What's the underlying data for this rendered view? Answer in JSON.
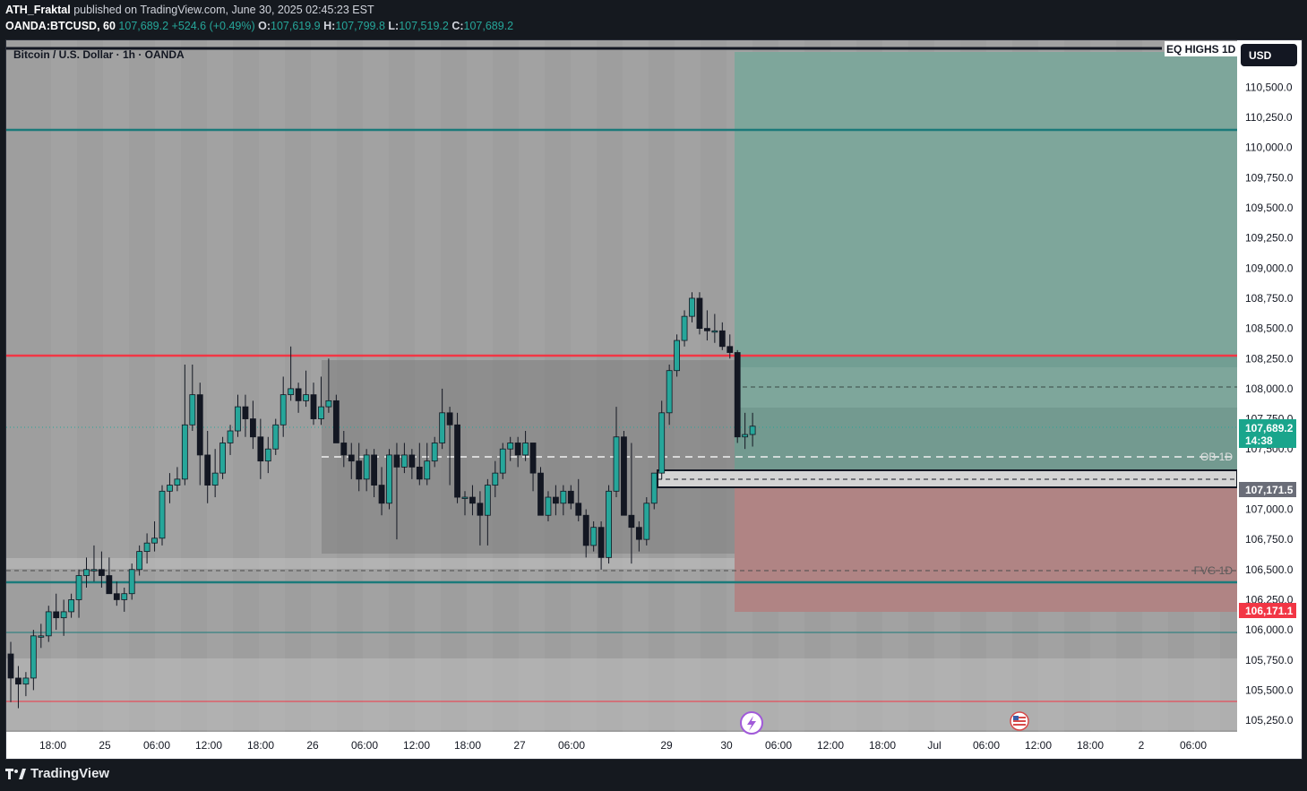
{
  "publish_line": {
    "author": "ATH_Fraktal",
    "text": " published on TradingView.com, June 30, 2025 02:45:23 EST"
  },
  "ohlc_line": {
    "symbol": "OANDA:BTCUSD, 60",
    "last": "107,689.2",
    "change": "+524.6 (+0.49%)",
    "o_label": "O:",
    "o": "107,619.9",
    "h_label": "H:",
    "h": "107,799.8",
    "l_label": "L:",
    "l": "107,519.2",
    "c_label": "C:",
    "c": "107,689.2"
  },
  "chart_title": "Bitcoin / U.S. Dollar · 1h · OANDA",
  "currency_button": "USD",
  "annotations": {
    "eq_highs": "EQ HIGHS 1D",
    "ob": "OB 1D",
    "fvg": "FVG 1D"
  },
  "price_badges": {
    "last": "107,689.2",
    "countdown": "14:38",
    "entry": "107,171.5",
    "stop": "106,171.1"
  },
  "footer_brand": "TradingView",
  "colors": {
    "up": "#26a69a",
    "down": "#131722",
    "profit_zone": "#7ea69b",
    "loss_zone": "#b08484",
    "level_red": "#f23645",
    "level_teal": "#1b7a7a",
    "badge_green": "#1aa58c",
    "badge_red": "#f23645",
    "badge_gray": "#6a6d78"
  },
  "chart_data": {
    "type": "candlestick",
    "symbol": "BTCUSD",
    "interval": "1h",
    "ylim": [
      105100,
      110700
    ],
    "y_ticks": [
      "110,500.0",
      "110,250.0",
      "110,000.0",
      "109,750.0",
      "109,500.0",
      "109,250.0",
      "109,000.0",
      "108,750.0",
      "108,500.0",
      "108,250.0",
      "108,000.0",
      "107,750.0",
      "107,500.0",
      "107,250.0",
      "107,000.0",
      "106,750.0",
      "106,500.0",
      "106,250.0",
      "106,000.0",
      "105,750.0",
      "105,500.0",
      "105,250.0"
    ],
    "x_ticks": [
      "18:00",
      "25",
      "06:00",
      "12:00",
      "18:00",
      "26",
      "06:00",
      "12:00",
      "18:00",
      "27",
      "06:00",
      "29",
      "30",
      "06:00",
      "12:00",
      "18:00",
      "Jul",
      "06:00",
      "12:00",
      "18:00",
      "2",
      "06:00"
    ],
    "levels": [
      {
        "name": "EQ HIGHS 1D",
        "price": 110150
      },
      {
        "name": "red level",
        "price": 108280
      },
      {
        "name": "OB 1D",
        "price": 107450
      },
      {
        "name": "FVG 1D",
        "price": 106500
      },
      {
        "name": "teal level",
        "price": 106400
      },
      {
        "name": "thin teal",
        "price": 105990
      },
      {
        "name": "thin red",
        "price": 105420
      }
    ],
    "position": {
      "entry": 107171.5,
      "target": 110650,
      "stop": 106171.1
    },
    "candles": [
      [
        105800,
        105900,
        105400,
        105600
      ],
      [
        105600,
        105700,
        105350,
        105550
      ],
      [
        105550,
        105650,
        105450,
        105600
      ],
      [
        105600,
        106000,
        105500,
        105950
      ],
      [
        105950,
        106050,
        105850,
        105950
      ],
      [
        105950,
        106200,
        105900,
        106150
      ],
      [
        106150,
        106300,
        106000,
        106100
      ],
      [
        106100,
        106250,
        105950,
        106150
      ],
      [
        106150,
        106300,
        106100,
        106250
      ],
      [
        106250,
        106500,
        106100,
        106450
      ],
      [
        106450,
        106600,
        106350,
        106500
      ],
      [
        106500,
        106700,
        106400,
        106500
      ],
      [
        106500,
        106650,
        106350,
        106450
      ],
      [
        106450,
        106600,
        106300,
        106300
      ],
      [
        106300,
        106400,
        106200,
        106250
      ],
      [
        106250,
        106350,
        106150,
        106300
      ],
      [
        106300,
        106550,
        106250,
        106500
      ],
      [
        106500,
        106700,
        106450,
        106650
      ],
      [
        106650,
        106800,
        106550,
        106720
      ],
      [
        106720,
        106900,
        106650,
        106760
      ],
      [
        106760,
        107200,
        106700,
        107150
      ],
      [
        107150,
        107300,
        107050,
        107200
      ],
      [
        107200,
        107350,
        107150,
        107250
      ],
      [
        107250,
        108200,
        107200,
        107700
      ],
      [
        107700,
        108200,
        107650,
        107950
      ],
      [
        107950,
        108050,
        107200,
        107450
      ],
      [
        107450,
        107650,
        107050,
        107200
      ],
      [
        107200,
        107500,
        107100,
        107300
      ],
      [
        107300,
        107600,
        107250,
        107550
      ],
      [
        107550,
        107700,
        107450,
        107650
      ],
      [
        107650,
        107950,
        107600,
        107850
      ],
      [
        107850,
        107950,
        107600,
        107750
      ],
      [
        107750,
        107900,
        107500,
        107600
      ],
      [
        107600,
        107750,
        107250,
        107400
      ],
      [
        107400,
        107600,
        107300,
        107500
      ],
      [
        107500,
        107750,
        107450,
        107700
      ],
      [
        107700,
        108100,
        107600,
        107950
      ],
      [
        107950,
        108350,
        107900,
        108000
      ],
      [
        108000,
        108050,
        107800,
        107900
      ],
      [
        107900,
        108150,
        107850,
        107950
      ],
      [
        107950,
        108050,
        107700,
        107750
      ],
      [
        107750,
        108100,
        107700,
        107850
      ],
      [
        107850,
        108250,
        107800,
        107900
      ],
      [
        107900,
        107950,
        107550,
        107550
      ],
      [
        107550,
        107650,
        107350,
        107450
      ],
      [
        107450,
        107550,
        107250,
        107400
      ],
      [
        107400,
        107550,
        107150,
        107250
      ],
      [
        107250,
        107500,
        107150,
        107450
      ],
      [
        107450,
        107500,
        107100,
        107200
      ],
      [
        107200,
        107350,
        106950,
        107050
      ],
      [
        107050,
        107500,
        107000,
        107450
      ],
      [
        107450,
        107550,
        106750,
        107350
      ],
      [
        107350,
        107550,
        107300,
        107450
      ],
      [
        107450,
        107500,
        107250,
        107350
      ],
      [
        107350,
        107550,
        107200,
        107250
      ],
      [
        107250,
        107550,
        107200,
        107400
      ],
      [
        107400,
        107600,
        107350,
        107550
      ],
      [
        107550,
        108000,
        107500,
        107800
      ],
      [
        107800,
        107850,
        107200,
        107700
      ],
      [
        107700,
        107800,
        107050,
        107100
      ],
      [
        107100,
        107150,
        106950,
        107100
      ],
      [
        107100,
        107200,
        106950,
        107050
      ],
      [
        107050,
        107150,
        106700,
        106950
      ],
      [
        106950,
        107250,
        106700,
        107200
      ],
      [
        107200,
        107400,
        107100,
        107300
      ],
      [
        107300,
        107550,
        107250,
        107500
      ],
      [
        107500,
        107600,
        107400,
        107550
      ],
      [
        107550,
        107600,
        107350,
        107450
      ],
      [
        107450,
        107650,
        107400,
        107550
      ],
      [
        107550,
        107550,
        107150,
        107300
      ],
      [
        107300,
        107350,
        106950,
        106950
      ],
      [
        106950,
        107150,
        106900,
        107100
      ],
      [
        107100,
        107200,
        106950,
        107050
      ],
      [
        107050,
        107200,
        106950,
        107150
      ],
      [
        107150,
        107200,
        107000,
        107050
      ],
      [
        107050,
        107250,
        106900,
        106950
      ],
      [
        106950,
        107000,
        106600,
        106700
      ],
      [
        106700,
        106900,
        106650,
        106850
      ],
      [
        106850,
        106900,
        106500,
        106600
      ],
      [
        106600,
        107200,
        106550,
        107150
      ],
      [
        107150,
        107850,
        107100,
        107600
      ],
      [
        107600,
        107650,
        106950,
        106950
      ],
      [
        106950,
        107550,
        106550,
        106850
      ],
      [
        106850,
        106900,
        106650,
        106750
      ],
      [
        106750,
        107100,
        106700,
        107050
      ],
      [
        107050,
        107300,
        107000,
        107300
      ],
      [
        107300,
        107900,
        107250,
        107800
      ],
      [
        107800,
        108200,
        107700,
        108150
      ],
      [
        108150,
        108450,
        108100,
        108400
      ],
      [
        108400,
        108650,
        108350,
        108600
      ],
      [
        108600,
        108800,
        108550,
        108750
      ],
      [
        108750,
        108800,
        108450,
        108500
      ],
      [
        108500,
        108650,
        108400,
        108480
      ],
      [
        108480,
        108620,
        108380,
        108480
      ],
      [
        108480,
        108550,
        108320,
        108350
      ],
      [
        108350,
        108450,
        108250,
        108300
      ],
      [
        108300,
        108320,
        107550,
        107600
      ],
      [
        107600,
        107800,
        107500,
        107620
      ],
      [
        107620,
        107800,
        107520,
        107689
      ]
    ]
  }
}
